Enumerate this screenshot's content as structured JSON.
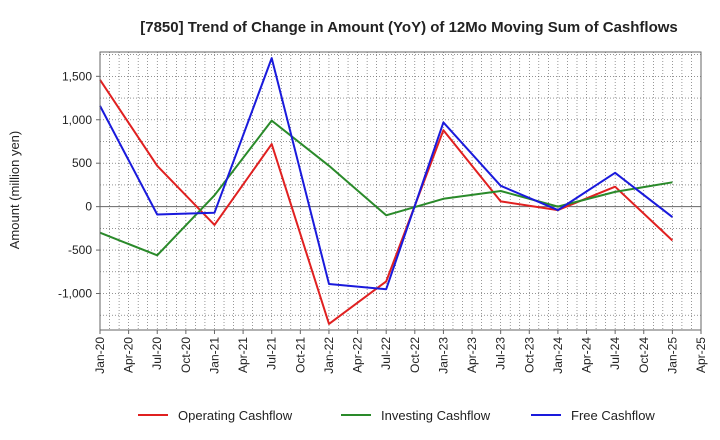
{
  "chart_data": {
    "type": "line",
    "title": "[7850]  Trend of Change in Amount (YoY) of 12Mo Moving Sum of Cashflows",
    "ylabel": "Amount (million yen)",
    "xlabel": "",
    "ylim": [
      -1420,
      1780
    ],
    "yticks": [
      -1000,
      -500,
      0,
      500,
      1000,
      1500
    ],
    "ytick_labels": [
      "-1,000",
      "-500",
      "0",
      "500",
      "1,000",
      "1,500"
    ],
    "x_tick_labels": [
      "Jan-20",
      "Apr-20",
      "Jul-20",
      "Oct-20",
      "Jan-21",
      "Apr-21",
      "Jul-21",
      "Oct-21",
      "Jan-22",
      "Apr-22",
      "Jul-22",
      "Oct-22",
      "Jan-23",
      "Apr-23",
      "Jul-23",
      "Oct-23",
      "Jan-24",
      "Apr-24",
      "Jul-24",
      "Oct-24",
      "Jan-25",
      "Apr-25"
    ],
    "x_points": [
      "Jan-20",
      "Jul-20",
      "Jan-21",
      "Jul-21",
      "Jan-22",
      "Jul-22",
      "Jan-23",
      "Jul-23",
      "Jan-24",
      "Jul-24",
      "Jan-25"
    ],
    "series": [
      {
        "name": "Operating Cashflow",
        "color": "#e02020",
        "values": [
          1460,
          470,
          -210,
          720,
          -1350,
          -860,
          880,
          60,
          -40,
          230,
          -390
        ]
      },
      {
        "name": "Investing Cashflow",
        "color": "#2a8a2a",
        "values": [
          -300,
          -560,
          130,
          990,
          470,
          -100,
          90,
          180,
          0,
          170,
          280
        ]
      },
      {
        "name": "Free Cashflow",
        "color": "#1a1adc",
        "values": [
          1160,
          -90,
          -70,
          1710,
          -890,
          -950,
          970,
          240,
          -40,
          390,
          -120
        ]
      }
    ],
    "legend_position": "bottom",
    "grid": true
  }
}
